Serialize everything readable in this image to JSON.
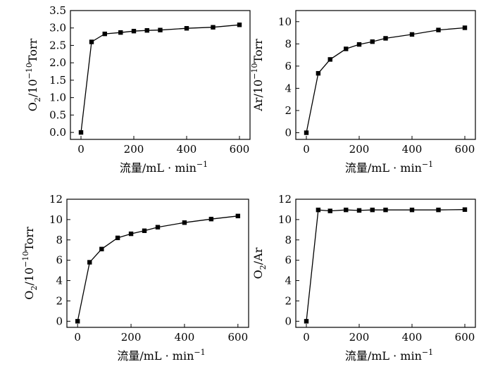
{
  "chart_data": [
    {
      "type": "line",
      "xlabel": "流量/mL · min",
      "xlabel_sup": "−1",
      "ylabel": "O",
      "ylabel_sub": "2",
      "ylabel_rest": "/10",
      "ylabel_sup": "−10",
      "ylabel_unit": "Torr",
      "xlim": [
        -40,
        640
      ],
      "ylim": [
        -0.2,
        3.5
      ],
      "xticks": [
        0,
        200,
        400,
        600
      ],
      "yticks": [
        0.0,
        0.5,
        1.0,
        1.5,
        2.0,
        2.5,
        3.0,
        3.5
      ],
      "ytick_labels": [
        "0.0",
        "0.5",
        "1.0",
        "1.5",
        "2.0",
        "2.5",
        "3.0",
        "3.5"
      ],
      "grid": false,
      "series": [
        {
          "x": [
            0,
            40,
            90,
            150,
            200,
            250,
            300,
            400,
            500,
            600
          ],
          "y": [
            0.0,
            2.6,
            2.83,
            2.87,
            2.91,
            2.93,
            2.94,
            2.99,
            3.02,
            3.09
          ]
        }
      ]
    },
    {
      "type": "line",
      "xlabel": "流量/mL · min",
      "xlabel_sup": "−1",
      "ylabel": "Ar/10",
      "ylabel_sub": "",
      "ylabel_rest": "",
      "ylabel_sup": "−10",
      "ylabel_unit": "Torr",
      "xlim": [
        -40,
        640
      ],
      "ylim": [
        -0.6,
        11
      ],
      "xticks": [
        0,
        200,
        400,
        600
      ],
      "yticks": [
        0,
        2,
        4,
        6,
        8,
        10
      ],
      "ytick_labels": [
        "0",
        "2",
        "4",
        "6",
        "8",
        "10"
      ],
      "grid": false,
      "series": [
        {
          "x": [
            0,
            45,
            90,
            150,
            200,
            250,
            300,
            400,
            500,
            600
          ],
          "y": [
            0.0,
            5.35,
            6.6,
            7.55,
            7.95,
            8.2,
            8.5,
            8.85,
            9.25,
            9.45
          ]
        }
      ]
    },
    {
      "type": "line",
      "xlabel": "流量/mL · min",
      "xlabel_sup": "−1",
      "ylabel": "O",
      "ylabel_sub": "2",
      "ylabel_rest": "/10",
      "ylabel_sup": "−10",
      "ylabel_unit": "Torr",
      "xlim": [
        -40,
        640
      ],
      "ylim": [
        -0.6,
        12
      ],
      "xticks": [
        0,
        200,
        400,
        600
      ],
      "yticks": [
        0,
        2,
        4,
        6,
        8,
        10,
        12
      ],
      "ytick_labels": [
        "0",
        "2",
        "4",
        "6",
        "8",
        "10",
        "12"
      ],
      "grid": false,
      "series": [
        {
          "x": [
            0,
            45,
            90,
            150,
            200,
            250,
            300,
            400,
            500,
            600
          ],
          "y": [
            0.0,
            5.8,
            7.1,
            8.2,
            8.6,
            8.9,
            9.25,
            9.7,
            10.05,
            10.35
          ]
        }
      ]
    },
    {
      "type": "line",
      "xlabel": "流量/mL · min",
      "xlabel_sup": "−1",
      "ylabel": "O",
      "ylabel_sub": "2",
      "ylabel_rest": "/Ar",
      "ylabel_sup": "",
      "ylabel_unit": "",
      "xlim": [
        -40,
        640
      ],
      "ylim": [
        -0.6,
        12
      ],
      "xticks": [
        0,
        200,
        400,
        600
      ],
      "yticks": [
        0,
        2,
        4,
        6,
        8,
        10,
        12
      ],
      "ytick_labels": [
        "0",
        "2",
        "4",
        "6",
        "8",
        "10",
        "12"
      ],
      "grid": false,
      "series": [
        {
          "x": [
            0,
            45,
            90,
            150,
            200,
            250,
            300,
            400,
            500,
            600
          ],
          "y": [
            0.0,
            10.95,
            10.85,
            10.95,
            10.9,
            10.95,
            10.95,
            10.95,
            10.95,
            10.98
          ]
        }
      ]
    }
  ]
}
